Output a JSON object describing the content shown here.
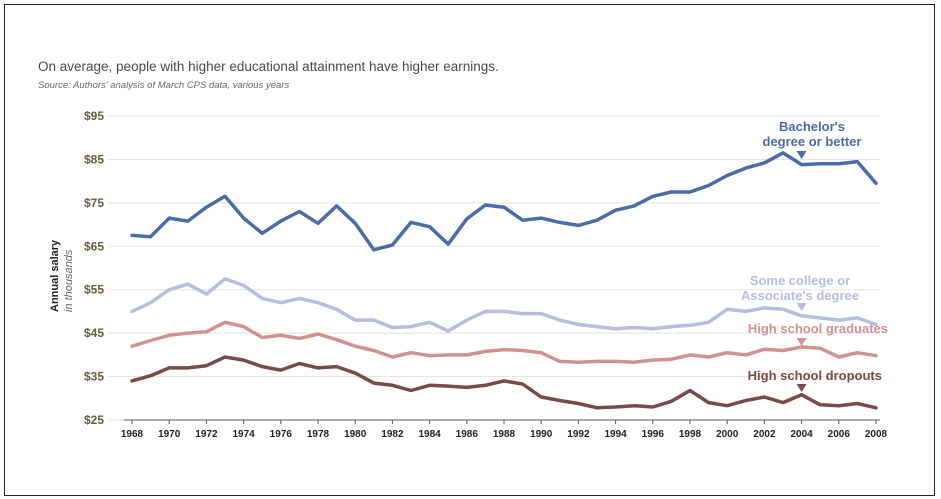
{
  "title": "On average, people with higher educational attainment have higher earnings.",
  "source": "Source: Authors' analysis of March CPS data, various years",
  "colors": {
    "bachelor": "#4a6ca8",
    "some_college": "#b7bce0",
    "hs_grad": "#cf9290",
    "dropout": "#7a4a4a",
    "axis_text": "#6b5a3e",
    "grid": "#e3e3e3"
  },
  "chart_data": {
    "type": "line",
    "title": "On average, people with higher educational attainment have higher earnings.",
    "ylabel": "Annual salary",
    "yunit": "in thousands",
    "ylim": [
      25,
      95
    ],
    "yticks": [
      25,
      35,
      45,
      55,
      65,
      75,
      85,
      95
    ],
    "ytick_labels": [
      "$25",
      "$35",
      "$45",
      "$55",
      "$65",
      "$75",
      "$85",
      "$95"
    ],
    "xlim": [
      1968,
      2008
    ],
    "xticks": [
      1968,
      1970,
      1972,
      1974,
      1976,
      1978,
      1980,
      1982,
      1984,
      1986,
      1988,
      1990,
      1992,
      1994,
      1996,
      1998,
      2000,
      2002,
      2004,
      2006,
      2008
    ],
    "grid": "horizontal",
    "x": [
      1968,
      1969,
      1970,
      1971,
      1972,
      1973,
      1974,
      1975,
      1976,
      1977,
      1978,
      1979,
      1980,
      1981,
      1982,
      1983,
      1984,
      1985,
      1986,
      1987,
      1988,
      1989,
      1990,
      1991,
      1992,
      1993,
      1994,
      1995,
      1996,
      1997,
      1998,
      1999,
      2000,
      2001,
      2002,
      2003,
      2004,
      2005,
      2006,
      2007,
      2008
    ],
    "series": [
      {
        "name": "Bachelor's degree or better",
        "label_lines": [
          "Bachelor's",
          "degree or better"
        ],
        "color_key": "bachelor",
        "values": [
          67.5,
          67.2,
          71.5,
          70.8,
          74.0,
          76.5,
          71.5,
          68.0,
          70.8,
          73.0,
          70.3,
          74.3,
          70.3,
          64.2,
          65.3,
          70.5,
          69.5,
          65.5,
          71.3,
          74.5,
          74.0,
          71.0,
          71.5,
          70.5,
          69.8,
          71.0,
          73.3,
          74.3,
          76.5,
          77.5,
          77.5,
          79.0,
          81.3,
          83.0,
          84.2,
          86.5,
          83.8,
          84.0,
          84.0,
          84.5,
          79.5
        ]
      },
      {
        "name": "Some college or Associate's degree",
        "label_lines": [
          "Some college or",
          "Associate's degree"
        ],
        "color_key": "some_college",
        "values": [
          50.0,
          52.0,
          55.0,
          56.3,
          54.0,
          57.5,
          56.0,
          53.0,
          52.0,
          53.0,
          52.0,
          50.5,
          48.0,
          48.0,
          46.3,
          46.5,
          47.5,
          45.5,
          48.0,
          50.0,
          50.0,
          49.5,
          49.5,
          48.0,
          47.0,
          46.5,
          46.0,
          46.3,
          46.0,
          46.5,
          46.8,
          47.5,
          50.5,
          50.0,
          50.8,
          50.5,
          49.0,
          48.5,
          48.0,
          48.5,
          47.0
        ]
      },
      {
        "name": "High school graduates",
        "label_lines": [
          "High school graduates"
        ],
        "color_key": "hs_grad",
        "values": [
          42.0,
          43.3,
          44.5,
          45.0,
          45.3,
          47.5,
          46.5,
          44.0,
          44.5,
          43.8,
          44.8,
          43.5,
          42.0,
          41.0,
          39.5,
          40.5,
          39.8,
          40.0,
          40.0,
          40.8,
          41.2,
          41.0,
          40.5,
          38.5,
          38.3,
          38.5,
          38.5,
          38.3,
          38.8,
          39.0,
          40.0,
          39.5,
          40.5,
          40.0,
          41.3,
          41.0,
          41.8,
          41.5,
          39.5,
          40.5,
          39.8
        ]
      },
      {
        "name": "High school dropouts",
        "label_lines": [
          "High school dropouts"
        ],
        "color_key": "dropout",
        "values": [
          34.0,
          35.2,
          37.0,
          37.0,
          37.5,
          39.5,
          38.8,
          37.3,
          36.5,
          38.0,
          37.0,
          37.3,
          35.8,
          33.5,
          33.0,
          31.8,
          33.0,
          32.8,
          32.5,
          33.0,
          34.0,
          33.3,
          30.3,
          29.5,
          28.8,
          27.8,
          28.0,
          28.3,
          28.0,
          29.3,
          31.8,
          29.0,
          28.3,
          29.5,
          30.3,
          29.0,
          30.8,
          28.5,
          28.3,
          28.8,
          27.8
        ]
      }
    ]
  }
}
